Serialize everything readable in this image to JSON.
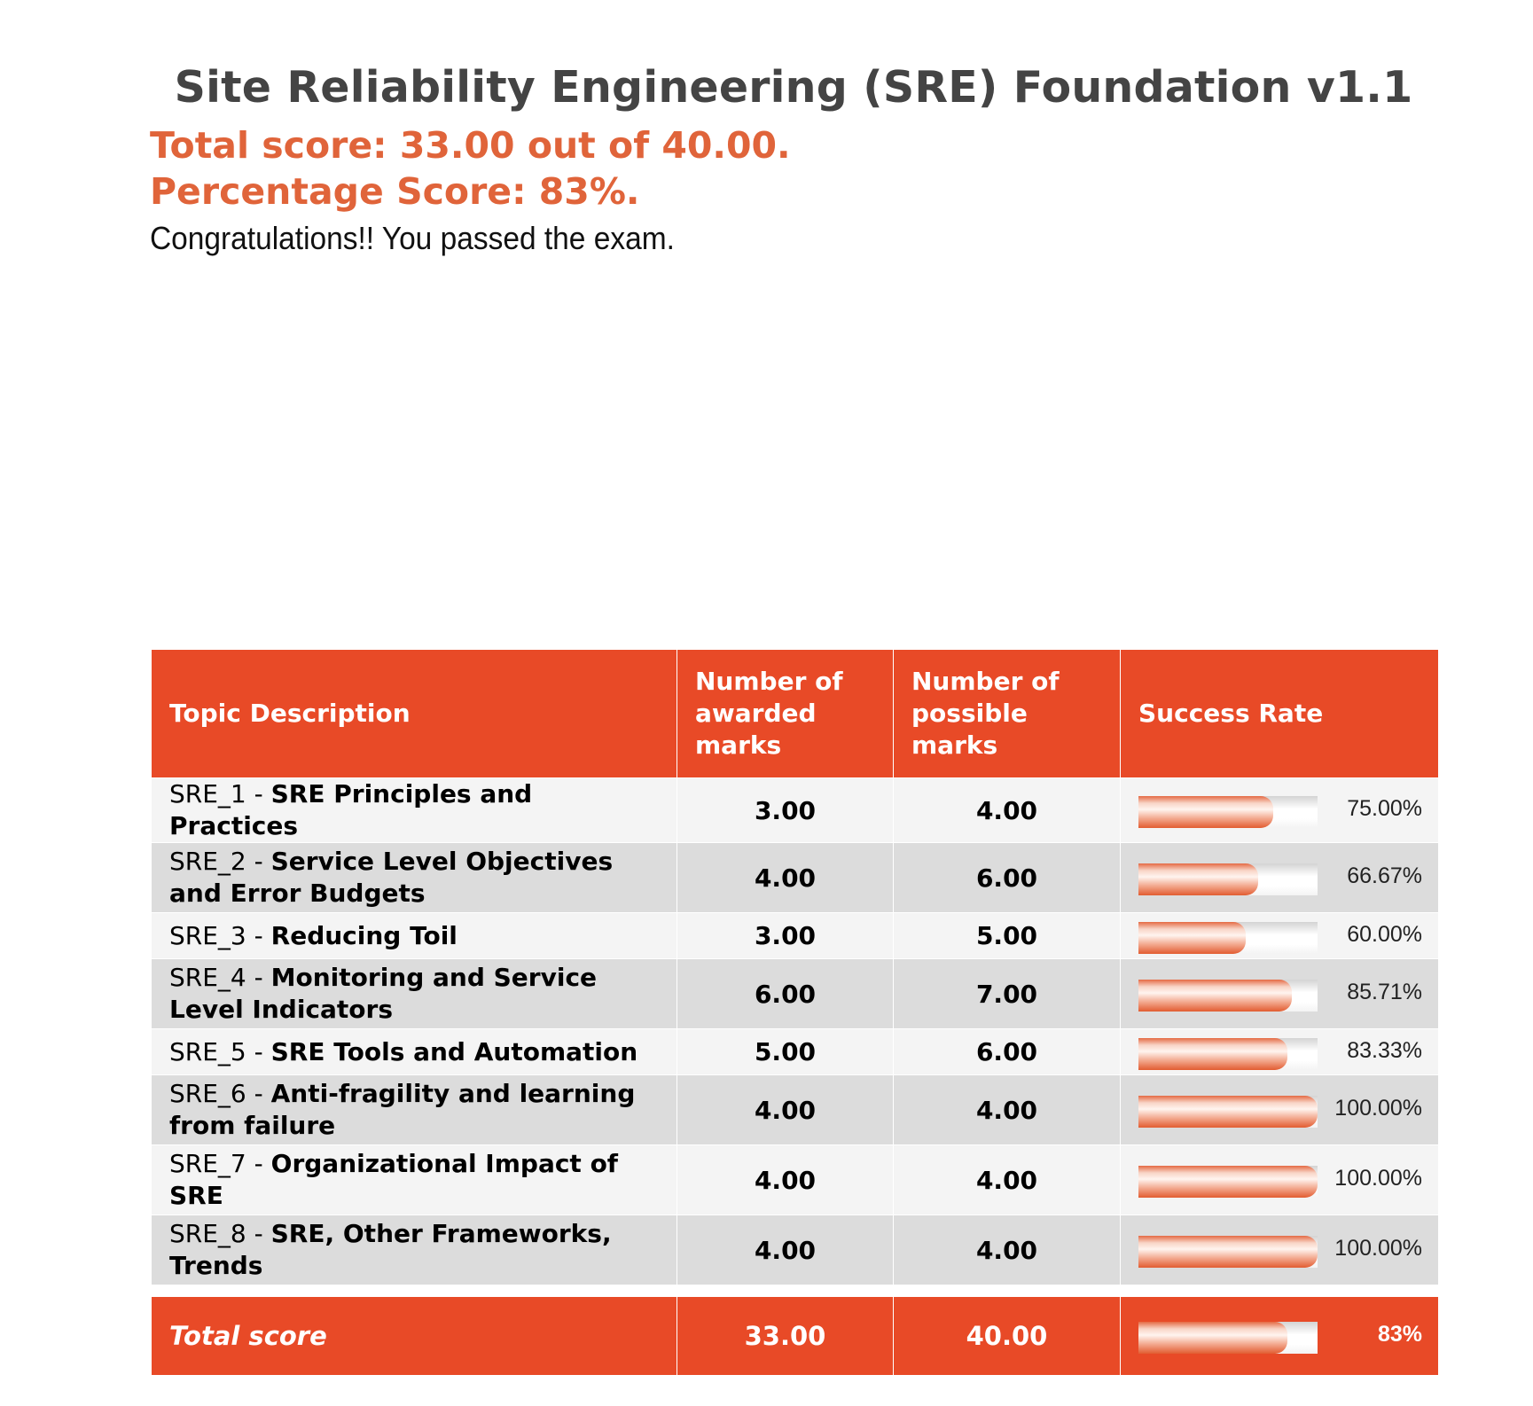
{
  "header": {
    "title": "Site Reliability Engineering (SRE) Foundation v1.1",
    "total_score": "Total score: 33.00 out of 40.00.",
    "percentage_score": "Percentage Score: 83%.",
    "message": "Congratulations!! You passed the exam."
  },
  "table": {
    "columns": {
      "topic": "Topic Description",
      "awarded": "Number of awarded marks",
      "possible": "Number of possible marks",
      "rate": "Success Rate"
    },
    "rows": [
      {
        "code": "SRE_1",
        "name": "SRE Principles and Practices",
        "awarded": "3.00",
        "possible": "4.00",
        "rate_label": "75.00%",
        "rate": 0.75
      },
      {
        "code": "SRE_2",
        "name": "Service Level Objectives and Error Budgets",
        "awarded": "4.00",
        "possible": "6.00",
        "rate_label": "66.67%",
        "rate": 0.6667
      },
      {
        "code": "SRE_3",
        "name": "Reducing Toil",
        "awarded": "3.00",
        "possible": "5.00",
        "rate_label": "60.00%",
        "rate": 0.6
      },
      {
        "code": "SRE_4",
        "name": "Monitoring and Service Level Indicators",
        "awarded": "6.00",
        "possible": "7.00",
        "rate_label": "85.71%",
        "rate": 0.8571
      },
      {
        "code": "SRE_5",
        "name": "SRE Tools and Automation",
        "awarded": "5.00",
        "possible": "6.00",
        "rate_label": "83.33%",
        "rate": 0.8333
      },
      {
        "code": "SRE_6",
        "name": "Anti-fragility and learning from failure",
        "awarded": "4.00",
        "possible": "4.00",
        "rate_label": "100.00%",
        "rate": 1.0
      },
      {
        "code": "SRE_7",
        "name": "Organizational Impact of SRE",
        "awarded": "4.00",
        "possible": "4.00",
        "rate_label": "100.00%",
        "rate": 1.0
      },
      {
        "code": "SRE_8",
        "name": "SRE, Other Frameworks, Trends",
        "awarded": "4.00",
        "possible": "4.00",
        "rate_label": "100.00%",
        "rate": 1.0
      }
    ],
    "total": {
      "label": "Total score",
      "awarded": "33.00",
      "possible": "40.00",
      "rate_label": "83%",
      "rate": 0.83
    }
  },
  "colors": {
    "accent": "#e84a27",
    "score_text": "#e0643a",
    "title": "#444444"
  }
}
